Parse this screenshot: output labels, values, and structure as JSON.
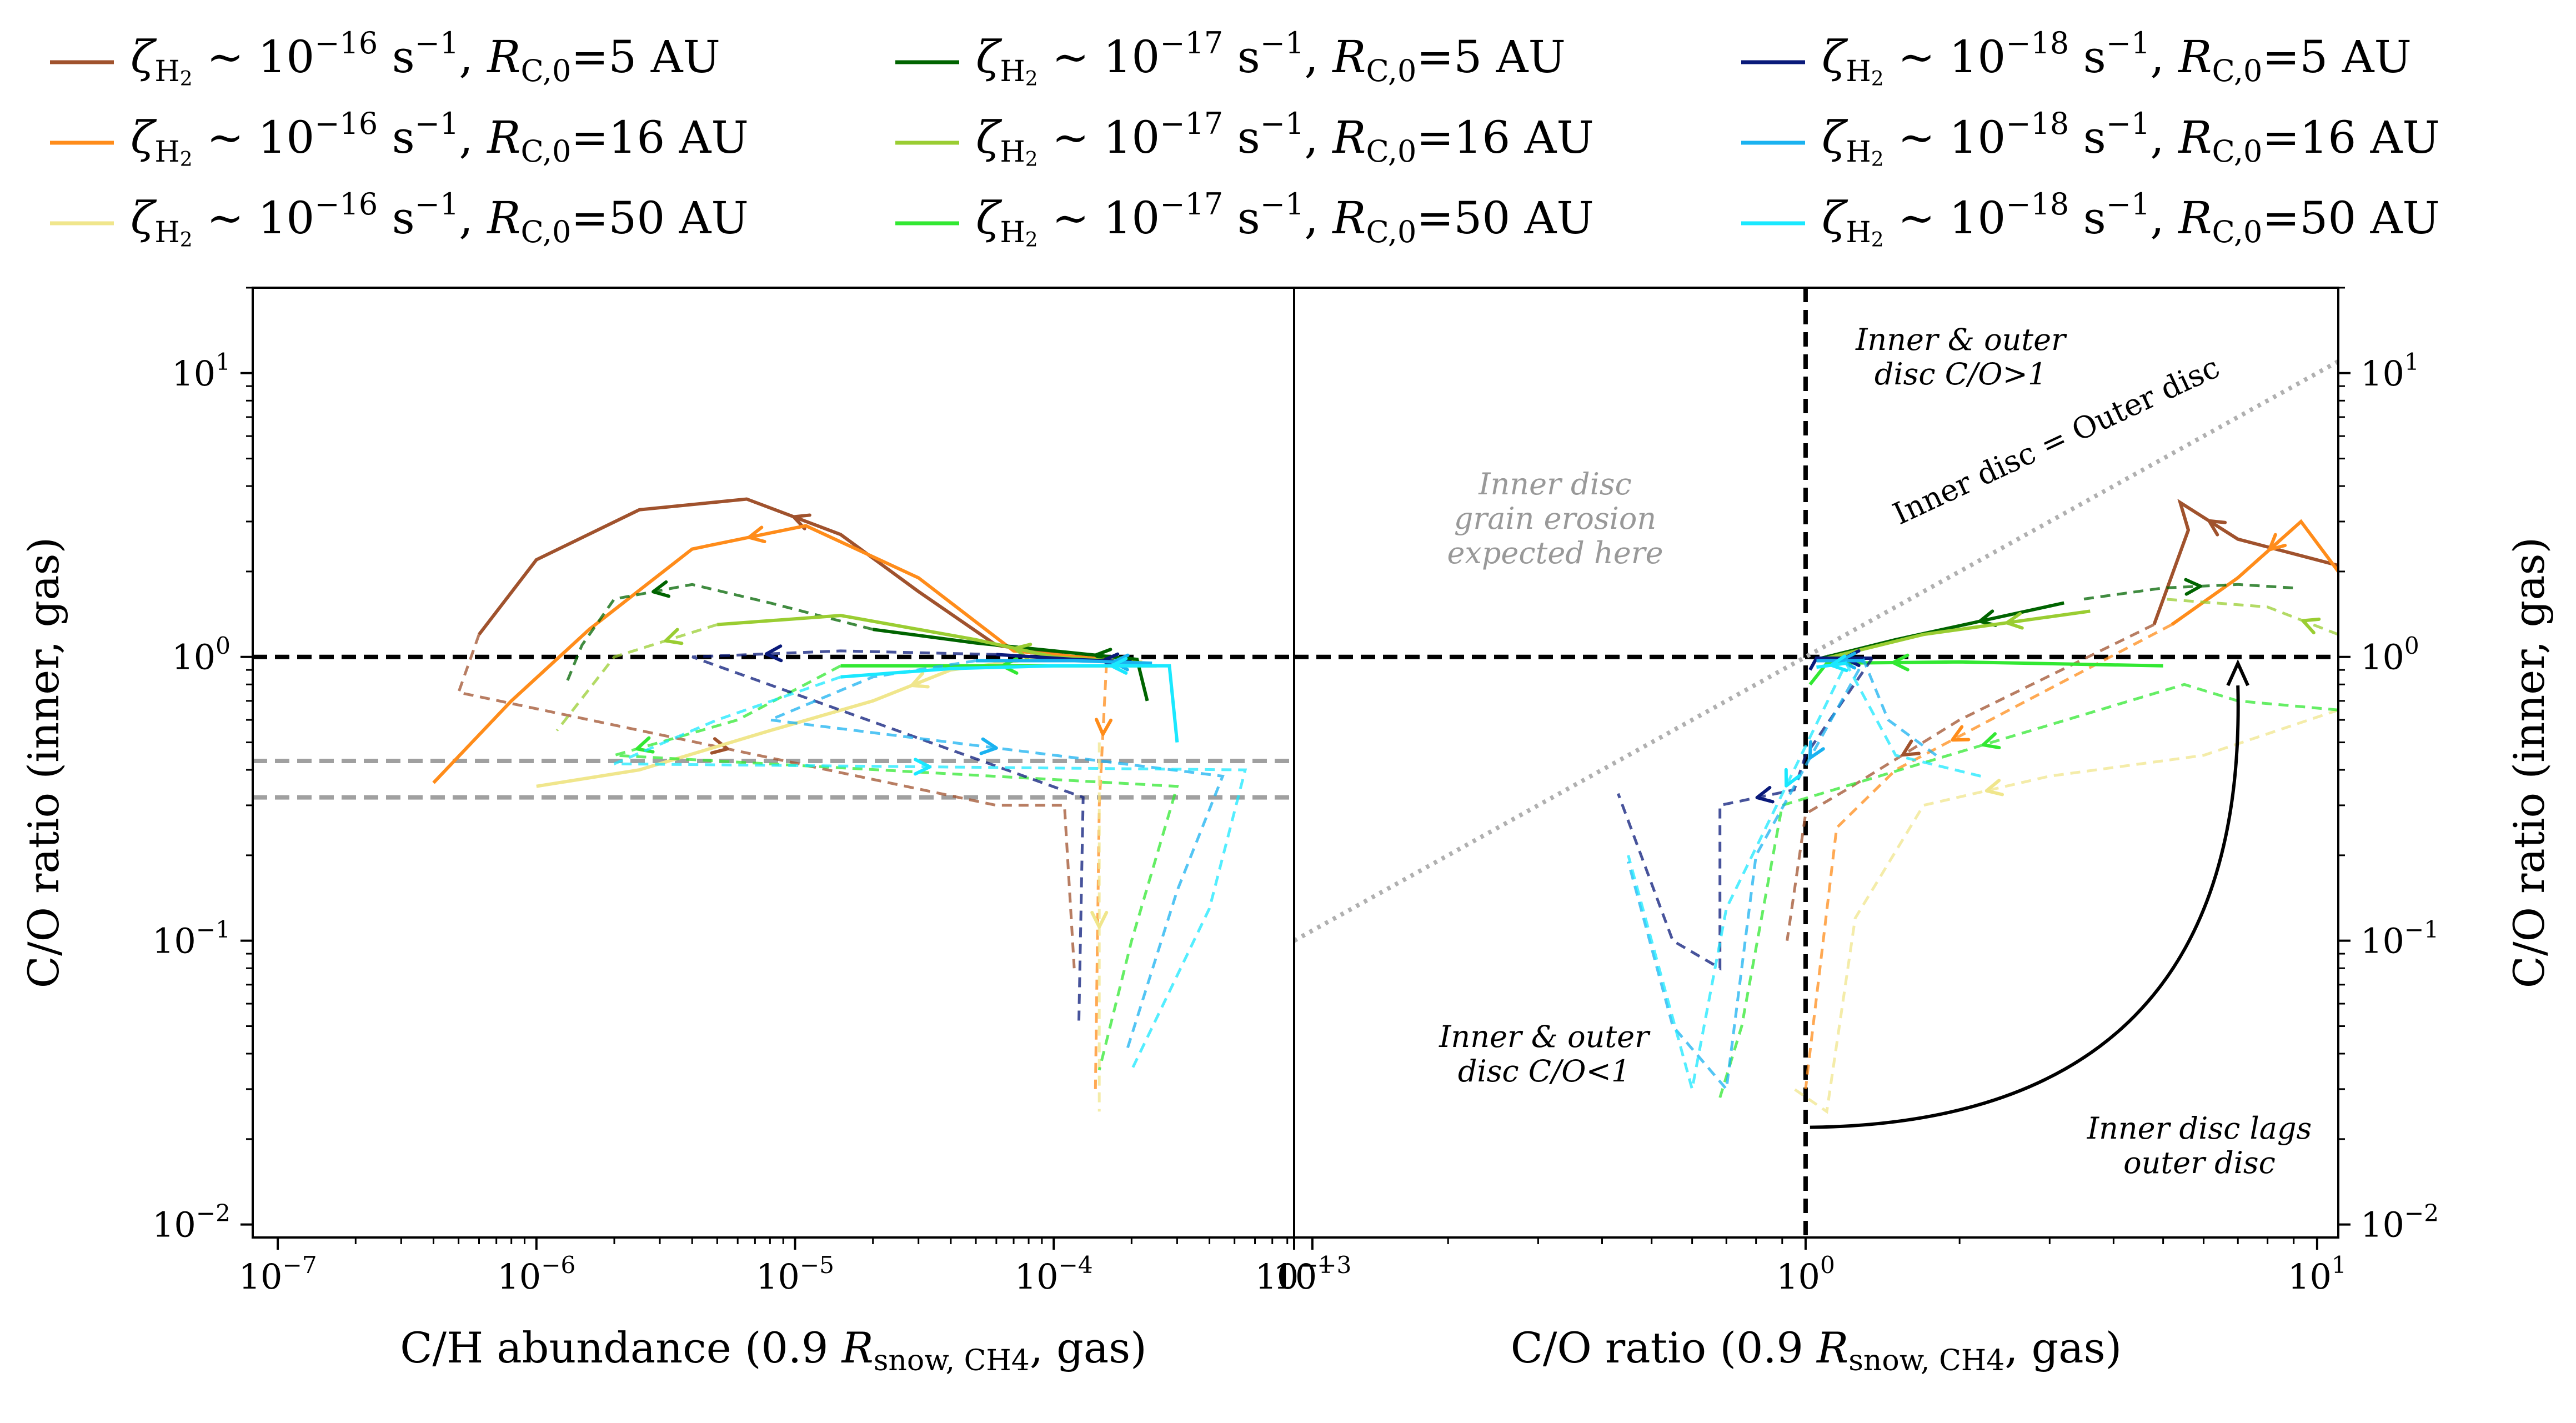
{
  "chart_data": [
    {
      "type": "line",
      "panel": "left",
      "xlabel": "C/H abundance (0.9 R_snow,CH4, gas)",
      "ylabel": "C/O ratio (inner, gas)",
      "xscale": "log",
      "yscale": "log",
      "xlim": [
        8e-08,
        0.00085
      ],
      "ylim": [
        0.009,
        20
      ],
      "x_ticks": [
        1e-07,
        1e-06,
        1e-05,
        0.0001,
        0.001
      ],
      "x_tick_labels": [
        "10^-7",
        "10^-6",
        "10^-5",
        "10^-4",
        "10^-3"
      ],
      "y_ticks": [
        0.01,
        0.1,
        1,
        10
      ],
      "y_tick_labels": [
        "10^-2",
        "10^-1",
        "10^0",
        "10^1"
      ],
      "reference_lines": [
        {
          "type": "hline",
          "y": 1.0,
          "style": "dashed",
          "color": "#000000"
        },
        {
          "type": "hline",
          "y": 0.43,
          "style": "dashed",
          "color": "#a0a0a0"
        },
        {
          "type": "hline",
          "y": 0.32,
          "style": "dashed",
          "color": "#a0a0a0"
        }
      ],
      "series": [
        {
          "name": "z16_R5",
          "color": "#a0522d",
          "solid": [
            [
              0.00012,
              1.0
            ],
            [
              6e-05,
              1.1
            ],
            [
              3e-05,
              1.7
            ],
            [
              1.5e-05,
              2.7
            ],
            [
              6.5e-06,
              3.6
            ],
            [
              2.5e-06,
              3.3
            ],
            [
              1e-06,
              2.2
            ],
            [
              6e-07,
              1.2
            ]
          ],
          "dashed": [
            [
              6e-07,
              1.2
            ],
            [
              5e-07,
              0.75
            ],
            [
              6e-05,
              0.3
            ],
            [
              0.00011,
              0.3
            ],
            [
              0.00012,
              0.08
            ]
          ]
        },
        {
          "name": "z16_R16",
          "color": "#ff8c1a",
          "solid": [
            [
              0.00016,
              0.98
            ],
            [
              7e-05,
              1.05
            ],
            [
              3e-05,
              1.9
            ],
            [
              1.1e-05,
              2.9
            ],
            [
              4e-06,
              2.4
            ],
            [
              1.6e-06,
              1.25
            ],
            [
              8e-07,
              0.7
            ],
            [
              4e-07,
              0.36
            ]
          ],
          "dashed": [
            [
              0.00016,
              0.95
            ],
            [
              0.00015,
              0.3
            ],
            [
              0.000145,
              0.03
            ]
          ]
        },
        {
          "name": "z16_R50",
          "color": "#f0e68c",
          "solid": [
            [
              0.00022,
              0.96
            ],
            [
              8e-05,
              0.98
            ],
            [
              4e-05,
              0.9
            ],
            [
              2e-05,
              0.7
            ],
            [
              8e-06,
              0.55
            ],
            [
              2.5e-06,
              0.4
            ],
            [
              1e-06,
              0.35
            ]
          ],
          "dashed": [
            [
              0.00015,
              0.5
            ],
            [
              0.00015,
              0.025
            ]
          ]
        },
        {
          "name": "z17_R5",
          "color": "#006400",
          "solid": [
            [
              0.00023,
              0.7
            ],
            [
              0.00021,
              0.98
            ],
            [
              0.0001,
              1.05
            ],
            [
              5e-05,
              1.12
            ],
            [
              2e-05,
              1.25
            ]
          ],
          "dashed": [
            [
              2e-05,
              1.25
            ],
            [
              8e-06,
              1.55
            ],
            [
              4e-06,
              1.8
            ],
            [
              2e-06,
              1.6
            ],
            [
              1.5e-06,
              1.1
            ],
            [
              1.3e-06,
              0.8
            ]
          ]
        },
        {
          "name": "z17_R16",
          "color": "#9acd32",
          "solid": [
            [
              0.00023,
              0.95
            ],
            [
              0.0001,
              1.0
            ],
            [
              5e-05,
              1.15
            ],
            [
              1.5e-05,
              1.4
            ],
            [
              5e-06,
              1.3
            ]
          ],
          "dashed": [
            [
              5e-06,
              1.3
            ],
            [
              2e-06,
              1.0
            ],
            [
              1.2e-06,
              0.55
            ]
          ]
        },
        {
          "name": "z17_R50",
          "color": "#32e832",
          "solid": [
            [
              0.00025,
              0.93
            ],
            [
              0.0001,
              0.93
            ],
            [
              4e-05,
              0.93
            ],
            [
              1.5e-05,
              0.93
            ]
          ],
          "dashed": [
            [
              1.5e-05,
              0.93
            ],
            [
              6e-06,
              0.6
            ],
            [
              3e-06,
              0.5
            ],
            [
              2e-06,
              0.45
            ],
            [
              0.0003,
              0.35
            ],
            [
              0.0002,
              0.1
            ],
            [
              0.00015,
              0.035
            ]
          ]
        },
        {
          "name": "z18_R5",
          "color": "#0a1a7a",
          "solid": [
            [
              0.0002,
              0.96
            ],
            [
              0.00012,
              0.98
            ],
            [
              6e-05,
              1.02
            ]
          ],
          "dashed": [
            [
              6e-05,
              1.02
            ],
            [
              1.5e-05,
              1.05
            ],
            [
              4e-06,
              1.0
            ],
            [
              0.00013,
              0.32
            ],
            [
              0.000125,
              0.05
            ]
          ]
        },
        {
          "name": "z18_R16",
          "color": "#1ab2f0",
          "solid": [
            [
              0.00024,
              0.95
            ],
            [
              0.00012,
              0.97
            ],
            [
              5e-05,
              0.97
            ]
          ],
          "dashed": [
            [
              5e-05,
              0.97
            ],
            [
              2e-05,
              0.85
            ],
            [
              8e-06,
              0.6
            ],
            [
              0.00045,
              0.38
            ],
            [
              0.0003,
              0.15
            ],
            [
              0.00019,
              0.04
            ]
          ]
        },
        {
          "name": "z18_R50",
          "color": "#1ae8ff",
          "solid": [
            [
              0.0003,
              0.5
            ],
            [
              0.00028,
              0.93
            ],
            [
              0.0001,
              0.93
            ],
            [
              4e-05,
              0.91
            ],
            [
              1.5e-05,
              0.85
            ]
          ],
          "dashed": [
            [
              1.5e-05,
              0.85
            ],
            [
              5e-06,
              0.6
            ],
            [
              2e-06,
              0.42
            ],
            [
              0.00055,
              0.4
            ],
            [
              0.0004,
              0.13
            ],
            [
              0.0002,
              0.035
            ]
          ]
        }
      ]
    },
    {
      "type": "line",
      "panel": "right",
      "xlabel": "C/O ratio (0.9 R_snow,CH4, gas)",
      "ylabel": "C/O ratio (inner, gas)",
      "xscale": "log",
      "yscale": "log",
      "xlim": [
        0.1,
        11
      ],
      "ylim": [
        0.009,
        20
      ],
      "x_ticks": [
        0.1,
        1,
        10
      ],
      "x_tick_labels": [
        "10^-1",
        "10^0",
        "10^1"
      ],
      "y_ticks": [
        0.01,
        0.1,
        1,
        10
      ],
      "y_tick_labels": [
        "10^-2",
        "10^-1",
        "10^0",
        "10^1"
      ],
      "reference_lines": [
        {
          "type": "hline",
          "y": 1.0,
          "style": "dashed",
          "color": "#000000"
        },
        {
          "type": "vline",
          "x": 1.0,
          "style": "dashed",
          "color": "#000000"
        },
        {
          "type": "one_to_one",
          "style": "dotted",
          "color": "#b0b0b0",
          "label": "Inner disc = Outer disc"
        }
      ],
      "annotations": [
        {
          "text": "Inner & outer disc C/O>1",
          "lines": [
            "Inner & outer",
            "disc C/O>1"
          ],
          "location": "top-center"
        },
        {
          "text": "Inner & outer disc C/O<1",
          "lines": [
            "Inner & outer",
            "disc C/O<1"
          ],
          "location": "bottom-left"
        },
        {
          "text": "Inner disc grain erosion expected here",
          "lines": [
            "Inner disc",
            "grain erosion",
            "expected here"
          ],
          "location": "upper-left",
          "color": "#999999"
        },
        {
          "text": "Inner disc lags outer disc",
          "lines": [
            "Inner disc lags",
            "outer disc"
          ],
          "location": "bottom-right",
          "arrow": {
            "from": [
              1.02,
              0.022
            ],
            "to": [
              7.0,
              0.95
            ]
          }
        }
      ],
      "series": [
        {
          "name": "z16_R5",
          "color": "#a0522d",
          "solid": [
            [
              11,
              2.1
            ],
            [
              7,
              2.6
            ],
            [
              5.4,
              3.5
            ],
            [
              5.6,
              2.8
            ],
            [
              4.8,
              1.3
            ]
          ],
          "dashed": [
            [
              4.8,
              1.3
            ],
            [
              2,
              0.6
            ],
            [
              1.2,
              0.34
            ],
            [
              1.0,
              0.28
            ],
            [
              0.92,
              0.1
            ]
          ]
        },
        {
          "name": "z16_R16",
          "color": "#ff8c1a",
          "solid": [
            [
              11,
              2.0
            ],
            [
              9.3,
              3.0
            ],
            [
              7,
              1.9
            ],
            [
              5.2,
              1.3
            ]
          ],
          "dashed": [
            [
              5.2,
              1.3
            ],
            [
              2.5,
              0.65
            ],
            [
              1.5,
              0.4
            ],
            [
              1.15,
              0.25
            ],
            [
              1.0,
              0.03
            ]
          ]
        },
        {
          "name": "z16_R50",
          "color": "#f0e68c",
          "solid": [],
          "dashed": [
            [
              11,
              0.65
            ],
            [
              6,
              0.45
            ],
            [
              3,
              0.38
            ],
            [
              1.7,
              0.3
            ],
            [
              1.25,
              0.12
            ],
            [
              1.1,
              0.025
            ],
            [
              0.95,
              0.03
            ]
          ]
        },
        {
          "name": "z17_R5",
          "color": "#006400",
          "solid": [
            [
              3.2,
              1.55
            ],
            [
              1.5,
              1.15
            ],
            [
              1.05,
              0.98
            ]
          ],
          "dashed": [
            [
              3.5,
              1.6
            ],
            [
              5,
              1.75
            ],
            [
              7,
              1.8
            ],
            [
              9,
              1.75
            ]
          ]
        },
        {
          "name": "z17_R16",
          "color": "#9acd32",
          "solid": [
            [
              3.6,
              1.45
            ],
            [
              1.7,
              1.2
            ],
            [
              1.05,
              0.97
            ]
          ],
          "dashed": [
            [
              11,
              1.2
            ],
            [
              8,
              1.5
            ],
            [
              5,
              1.6
            ]
          ]
        },
        {
          "name": "z17_R50",
          "color": "#32e832",
          "solid": [
            [
              5,
              0.93
            ],
            [
              2,
              0.96
            ],
            [
              1.1,
              0.95
            ],
            [
              1.02,
              0.8
            ]
          ],
          "dashed": [
            [
              11,
              0.65
            ],
            [
              7,
              0.7
            ],
            [
              5.5,
              0.8
            ],
            [
              0.9,
              0.3
            ],
            [
              0.75,
              0.05
            ],
            [
              0.68,
              0.028
            ]
          ]
        },
        {
          "name": "z18_R5",
          "color": "#0a1a7a",
          "solid": [
            [
              1.35,
              0.99
            ],
            [
              1.05,
              0.99
            ],
            [
              1.02,
              0.9
            ]
          ],
          "dashed": [
            [
              1.35,
              0.99
            ],
            [
              1.0,
              0.45
            ],
            [
              0.95,
              0.34
            ],
            [
              0.68,
              0.3
            ],
            [
              0.68,
              0.08
            ],
            [
              0.55,
              0.1
            ],
            [
              0.43,
              0.33
            ]
          ]
        },
        {
          "name": "z18_R16",
          "color": "#1ab2f0",
          "solid": [
            [
              1.3,
              0.97
            ],
            [
              1.05,
              0.97
            ]
          ],
          "dashed": [
            [
              1.8,
              0.45
            ],
            [
              1.45,
              0.6
            ],
            [
              1.3,
              0.97
            ],
            [
              0.8,
              0.2
            ],
            [
              0.7,
              0.03
            ],
            [
              0.55,
              0.05
            ],
            [
              0.45,
              0.19
            ]
          ]
        },
        {
          "name": "z18_R50",
          "color": "#1ae8ff",
          "solid": [
            [
              1.2,
              0.95
            ],
            [
              1.05,
              0.92
            ]
          ],
          "dashed": [
            [
              2.2,
              0.38
            ],
            [
              1.5,
              0.45
            ],
            [
              1.2,
              0.95
            ],
            [
              0.7,
              0.13
            ],
            [
              0.6,
              0.03
            ],
            [
              0.45,
              0.2
            ]
          ]
        }
      ]
    }
  ],
  "legend": {
    "position": "top",
    "items": [
      {
        "series": "z16_R5",
        "color": "#a0522d",
        "zeta": "10",
        "zeta_exp": "−16",
        "unit": "s",
        "unit_exp": "−1",
        "rc": "5 AU"
      },
      {
        "series": "z16_R16",
        "color": "#ff8c1a",
        "zeta": "10",
        "zeta_exp": "−16",
        "unit": "s",
        "unit_exp": "−1",
        "rc": "16 AU"
      },
      {
        "series": "z16_R50",
        "color": "#f0e68c",
        "zeta": "10",
        "zeta_exp": "−16",
        "unit": "s",
        "unit_exp": "−1",
        "rc": "50 AU"
      },
      {
        "series": "z17_R5",
        "color": "#006400",
        "zeta": "10",
        "zeta_exp": "−17",
        "unit": "s",
        "unit_exp": "−1",
        "rc": "5 AU"
      },
      {
        "series": "z17_R16",
        "color": "#9acd32",
        "zeta": "10",
        "zeta_exp": "−17",
        "unit": "s",
        "unit_exp": "−1",
        "rc": "16 AU"
      },
      {
        "series": "z17_R50",
        "color": "#32e832",
        "zeta": "10",
        "zeta_exp": "−17",
        "unit": "s",
        "unit_exp": "−1",
        "rc": "50 AU"
      },
      {
        "series": "z18_R5",
        "color": "#0a1a7a",
        "zeta": "10",
        "zeta_exp": "−18",
        "unit": "s",
        "unit_exp": "−1",
        "rc": "5 AU"
      },
      {
        "series": "z18_R16",
        "color": "#1ab2f0",
        "zeta": "10",
        "zeta_exp": "−18",
        "unit": "s",
        "unit_exp": "−1",
        "rc": "16 AU"
      },
      {
        "series": "z18_R50",
        "color": "#1ae8ff",
        "zeta": "10",
        "zeta_exp": "−18",
        "unit": "s",
        "unit_exp": "−1",
        "rc": "50 AU"
      }
    ]
  }
}
